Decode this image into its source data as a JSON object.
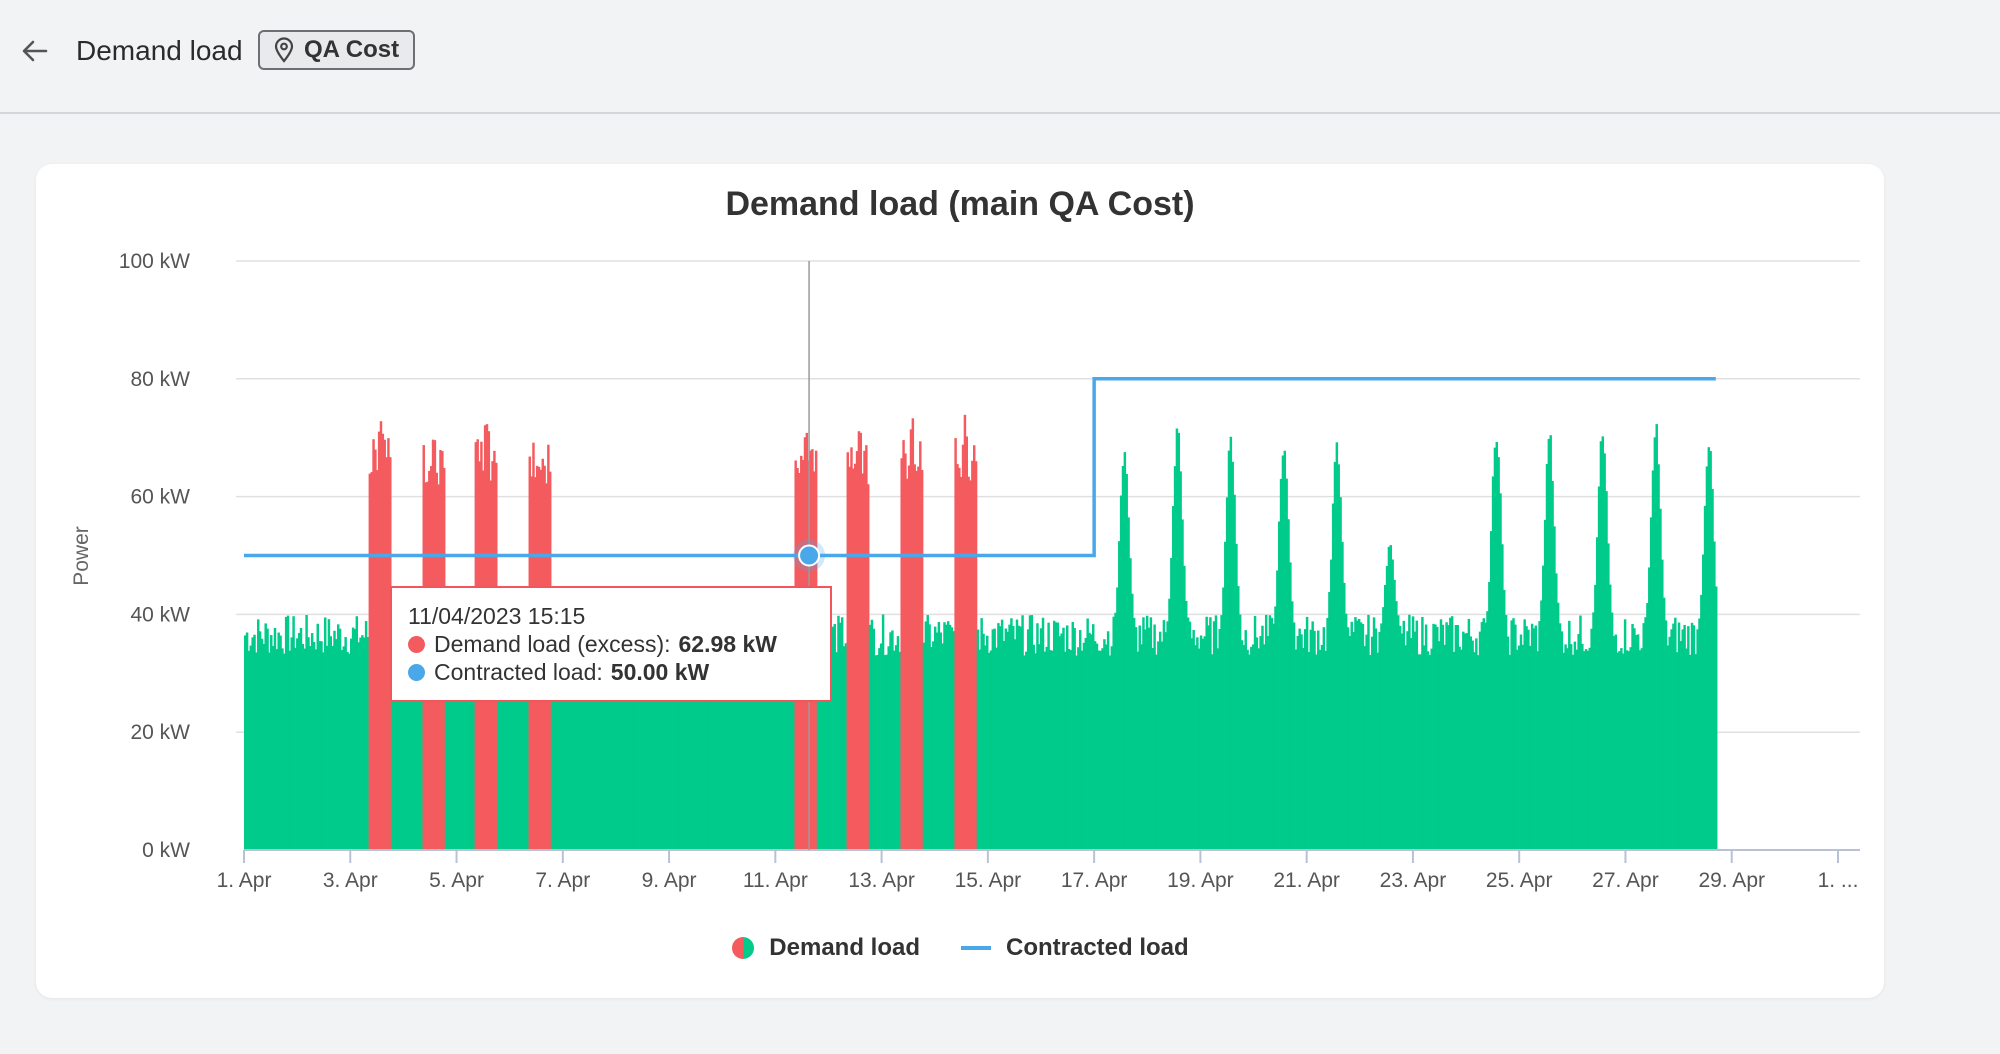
{
  "header": {
    "title": "Demand load",
    "location": "QA Cost"
  },
  "colors": {
    "demand_normal": "#00cb8a",
    "demand_excess": "#f45b5f",
    "contracted": "#4aa8ea",
    "grid": "#e0e0e0"
  },
  "tooltip": {
    "datetime": "11/04/2023 15:15",
    "demand_label": "Demand load (excess):",
    "demand_value": "62.98 kW",
    "contracted_label": "Contracted load:",
    "contracted_value": "50.00 kW"
  },
  "legend": {
    "demand": "Demand load",
    "contracted": "Contracted load"
  },
  "chart_data": {
    "type": "bar",
    "title": "Demand load (main QA Cost)",
    "ylabel": "Power",
    "xlabel": "",
    "ylim": [
      0,
      100
    ],
    "y_ticks": [
      "0 kW",
      "20 kW",
      "40 kW",
      "60 kW",
      "80 kW",
      "100 kW"
    ],
    "x_ticks": [
      "1. Apr",
      "3. Apr",
      "5. Apr",
      "7. Apr",
      "9. Apr",
      "11. Apr",
      "13. Apr",
      "15. Apr",
      "17. Apr",
      "19. Apr",
      "21. Apr",
      "23. Apr",
      "25. Apr",
      "27. Apr",
      "29. Apr",
      "1. ..."
    ],
    "x_range_days": [
      1,
      31
    ],
    "data_end_day": 28.7,
    "demand_series_name": "Demand load",
    "demand_base_kw": 36,
    "daily_peaks_kw": [
      {
        "day": "3. Apr",
        "peak": 76,
        "excess": true
      },
      {
        "day": "4. Apr",
        "peak": 74,
        "excess": true
      },
      {
        "day": "5. Apr",
        "peak": 76,
        "excess": true
      },
      {
        "day": "6. Apr",
        "peak": 68,
        "excess": true
      },
      {
        "day": "11. Apr",
        "peak": 74,
        "excess": true
      },
      {
        "day": "12. Apr",
        "peak": 74,
        "excess": true
      },
      {
        "day": "13. Apr",
        "peak": 74,
        "excess": true
      },
      {
        "day": "14. Apr",
        "peak": 76,
        "excess": true
      },
      {
        "day": "17. Apr",
        "peak": 69,
        "excess": false
      },
      {
        "day": "18. Apr",
        "peak": 74,
        "excess": false
      },
      {
        "day": "19. Apr",
        "peak": 72,
        "excess": false
      },
      {
        "day": "20. Apr",
        "peak": 71,
        "excess": false
      },
      {
        "day": "21. Apr",
        "peak": 70,
        "excess": false
      },
      {
        "day": "22. Apr",
        "peak": 53,
        "excess": false
      },
      {
        "day": "24. Apr",
        "peak": 73,
        "excess": false
      },
      {
        "day": "25. Apr",
        "peak": 72,
        "excess": false
      },
      {
        "day": "26. Apr",
        "peak": 73,
        "excess": false
      },
      {
        "day": "27. Apr",
        "peak": 73,
        "excess": false
      },
      {
        "day": "28. Apr",
        "peak": 70,
        "excess": false
      }
    ],
    "contracted_load_kw": [
      {
        "from": "1. Apr",
        "to": "17. Apr",
        "value": 50
      },
      {
        "from": "17. Apr",
        "to": "28. Apr",
        "value": 80
      }
    ],
    "highlighted_point": {
      "datetime": "11/04/2023 15:15",
      "demand_kw": 62.98,
      "contracted_kw": 50.0
    }
  }
}
